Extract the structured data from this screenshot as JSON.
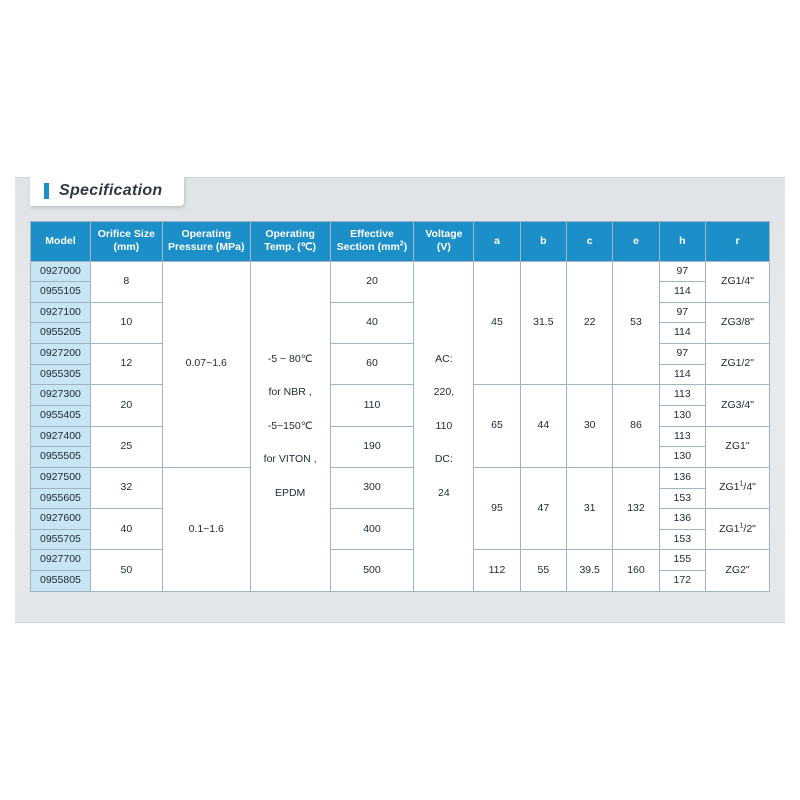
{
  "title": "Specification",
  "colors": {
    "header_bg": "#1d8fc8",
    "header_fg": "#ffffff",
    "model_bg": "#c9e4f2",
    "cell_fg": "#1a2a33",
    "border": "#9fb5c1",
    "panel_bg_top": "#dfe3e6",
    "panel_bg_bot": "#e4e7ea",
    "tab_bg": "#ffffff"
  },
  "columns": [
    {
      "key": "model",
      "label": "Model"
    },
    {
      "key": "orifice",
      "label": "Orifice Size\n(mm)"
    },
    {
      "key": "press",
      "label": "Operating\nPressure  (MPa)"
    },
    {
      "key": "temp",
      "label": "Operating\nTemp. (℃)"
    },
    {
      "key": "section",
      "label": "Effective\nSection (mm²)"
    },
    {
      "key": "voltage",
      "label": "Voltage\n(V)"
    },
    {
      "key": "a",
      "label": "a"
    },
    {
      "key": "b",
      "label": "b"
    },
    {
      "key": "c",
      "label": "c"
    },
    {
      "key": "e",
      "label": "e"
    },
    {
      "key": "h",
      "label": "h"
    },
    {
      "key": "r",
      "label": "r"
    }
  ],
  "pressure": [
    "0.07~1.6",
    "0.1~1.6"
  ],
  "temp_lines": [
    "-5 ~ 80℃",
    "for NBR ,",
    "-5~150℃",
    "for VITON ,",
    "EPDM"
  ],
  "voltage_lines": [
    "AC:",
    "220,",
    "110",
    "DC:",
    "24"
  ],
  "pairs": [
    {
      "m1": "0927000",
      "m2": "0955105",
      "orifice": "8",
      "section": "20",
      "h1": "97",
      "h2": "114",
      "r": "ZG1/4\""
    },
    {
      "m1": "0927100",
      "m2": "0955205",
      "orifice": "10",
      "section": "40",
      "h1": "97",
      "h2": "114",
      "r": "ZG3/8\""
    },
    {
      "m1": "0927200",
      "m2": "0955305",
      "orifice": "12",
      "section": "60",
      "h1": "97",
      "h2": "114",
      "r": "ZG1/2\""
    },
    {
      "m1": "0927300",
      "m2": "0955405",
      "orifice": "20",
      "section": "110",
      "h1": "113",
      "h2": "130",
      "r": "ZG3/4\""
    },
    {
      "m1": "0927400",
      "m2": "0955505",
      "orifice": "25",
      "section": "190",
      "h1": "113",
      "h2": "130",
      "r": "ZG1\""
    },
    {
      "m1": "0927500",
      "m2": "0955605",
      "orifice": "32",
      "section": "300",
      "h1": "136",
      "h2": "153",
      "r": "ZG1¹/4\""
    },
    {
      "m1": "0927600",
      "m2": "0955705",
      "orifice": "40",
      "section": "400",
      "h1": "136",
      "h2": "153",
      "r": "ZG1¹/2\""
    },
    {
      "m1": "0927700",
      "m2": "0955805",
      "orifice": "50",
      "section": "500",
      "h1": "155",
      "h2": "172",
      "r": "ZG2\""
    }
  ],
  "dim_blocks": [
    {
      "a": "45",
      "b": "31.5",
      "c": "22",
      "e": "53"
    },
    {
      "a": "65",
      "b": "44",
      "c": "30",
      "e": "86"
    },
    {
      "a": "95",
      "b": "47",
      "c": "31",
      "e": "132"
    },
    {
      "a": "112",
      "b": "55",
      "c": "39.5",
      "e": "160"
    }
  ]
}
